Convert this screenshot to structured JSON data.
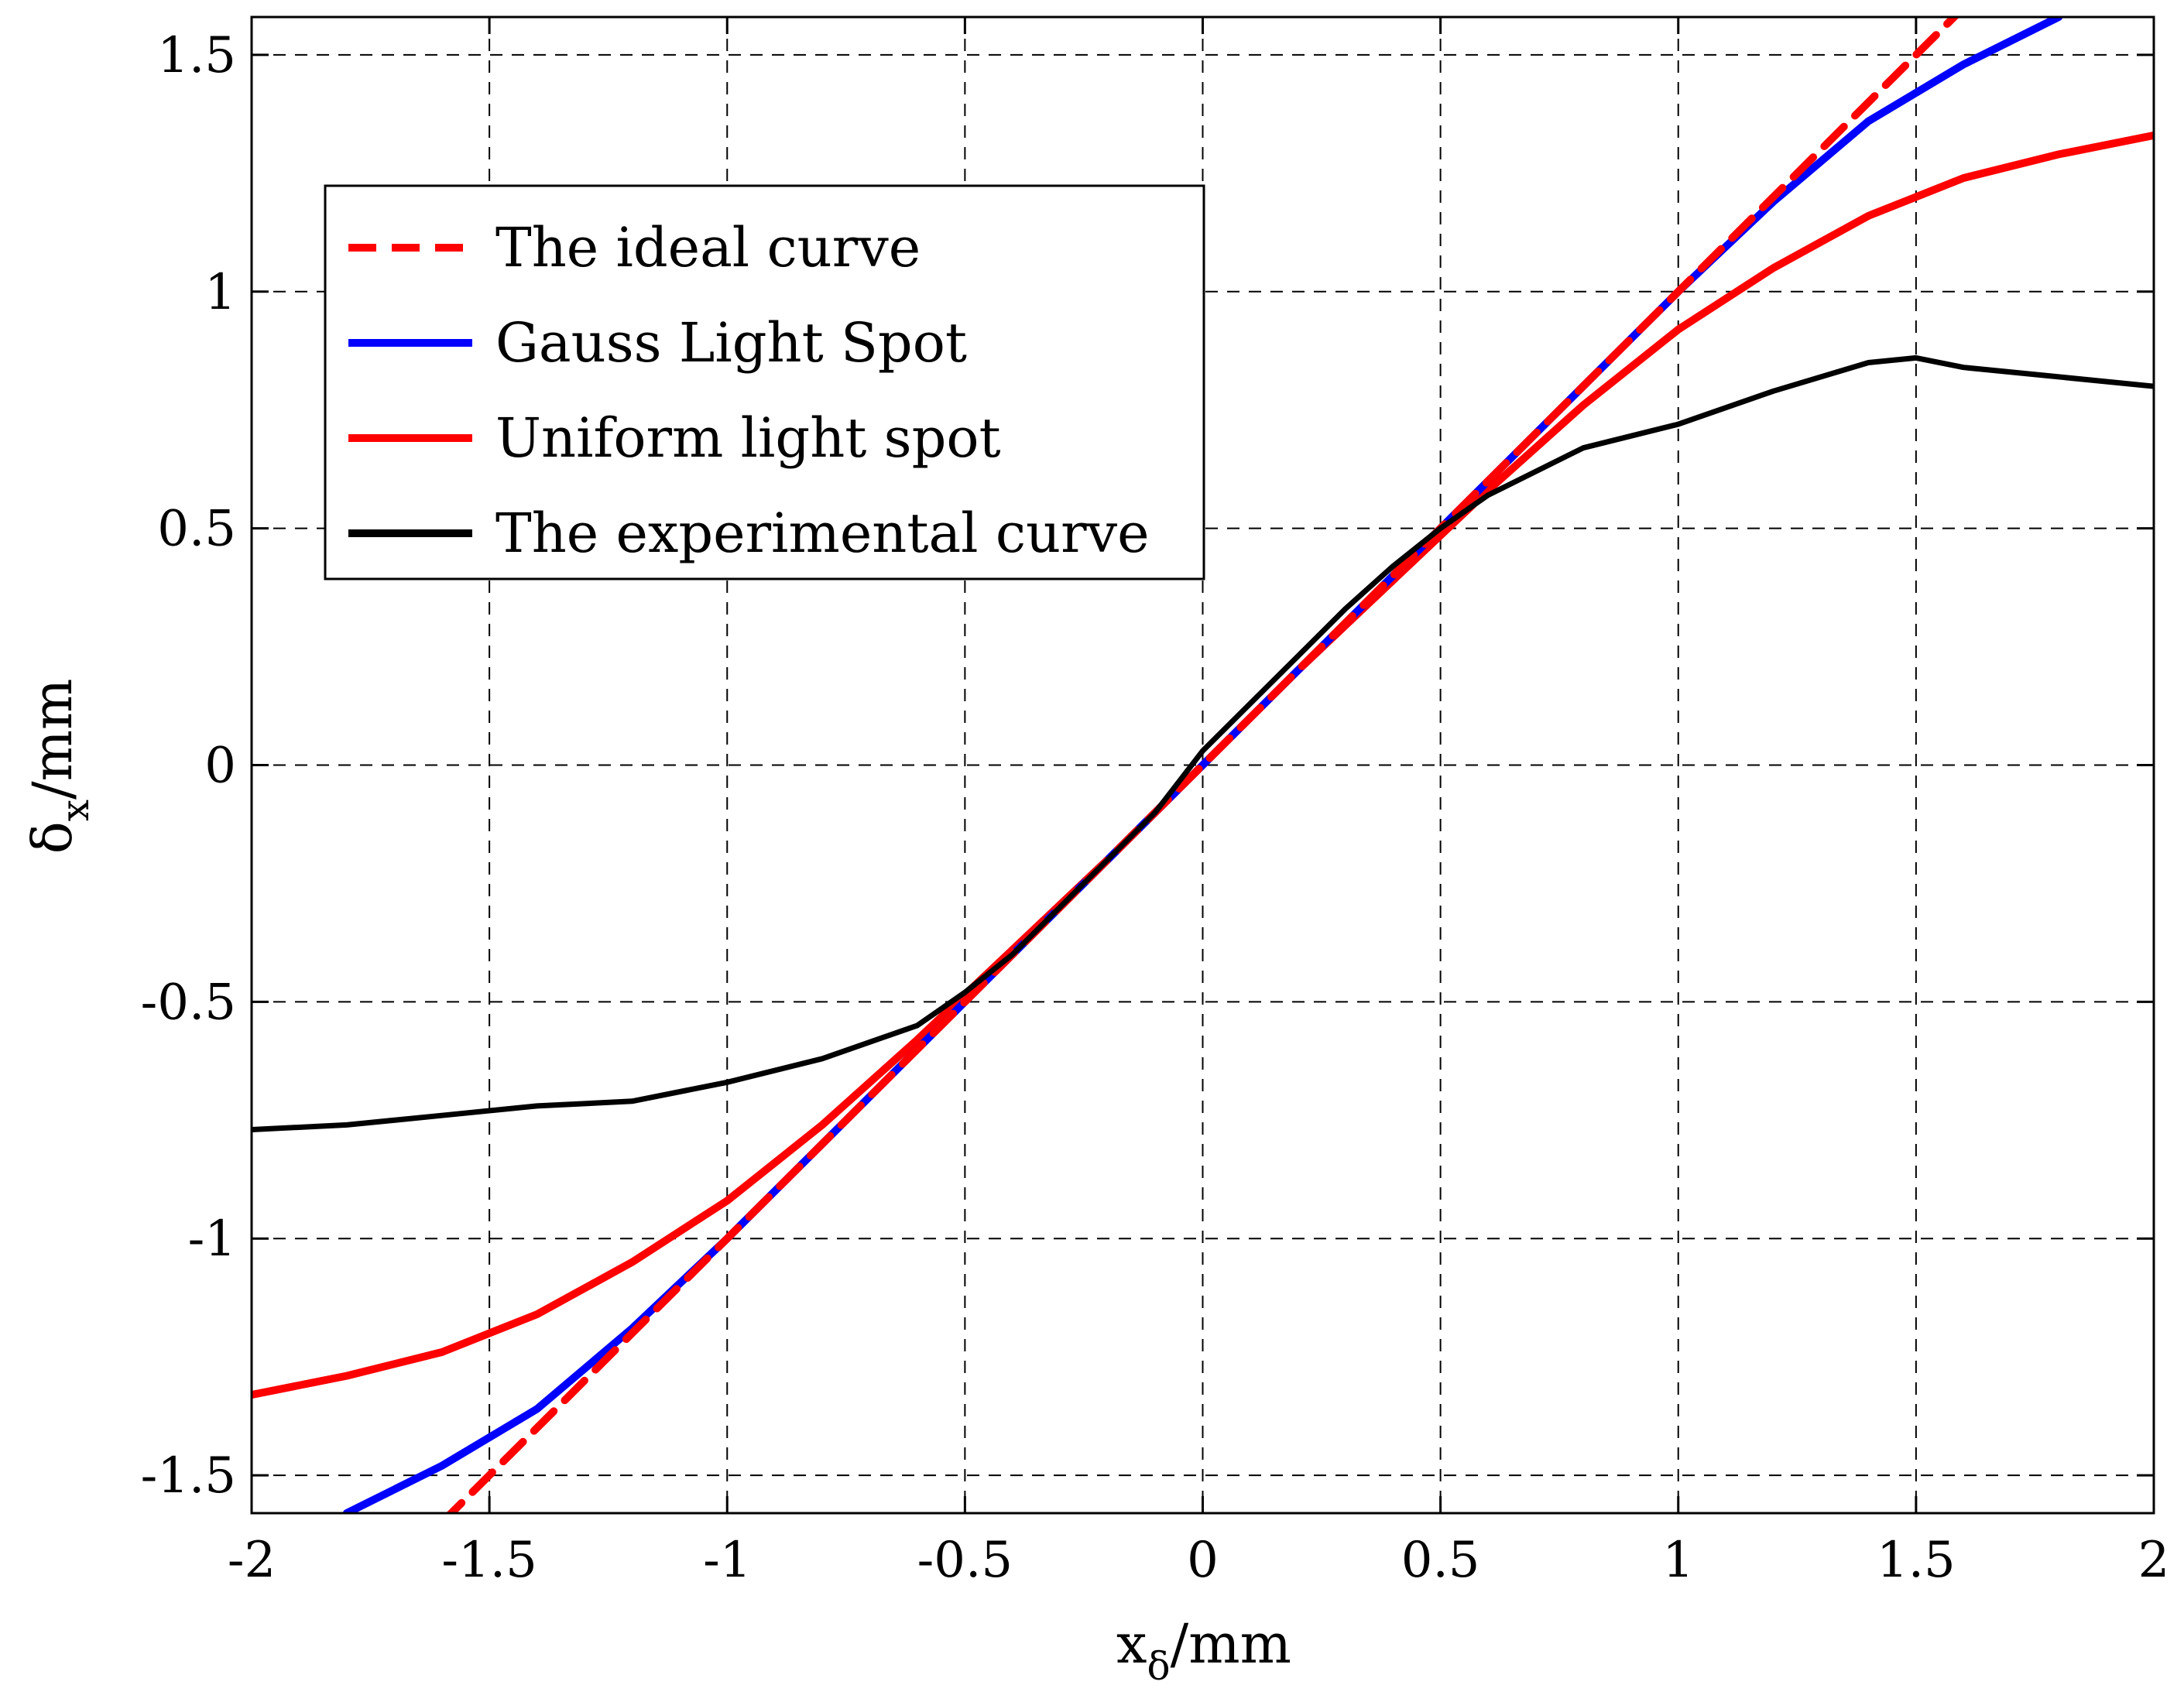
{
  "chart_data": {
    "type": "line",
    "title": "",
    "xlabel": {
      "base": "x",
      "sub": "δ",
      "unit": "/mm"
    },
    "ylabel": {
      "base": "δ",
      "sub": "x",
      "unit": "/mm"
    },
    "xlim": [
      -2,
      2
    ],
    "ylim": [
      -1.58,
      1.58
    ],
    "xticks": [
      -2,
      -1.5,
      -1,
      -0.5,
      0,
      0.5,
      1,
      1.5,
      2
    ],
    "xtick_labels": [
      "-2",
      "-1.5",
      "-1",
      "-0.5",
      "0",
      "0.5",
      "1",
      "1.5",
      "2"
    ],
    "yticks": [
      -1.5,
      -1,
      -0.5,
      0,
      0.5,
      1,
      1.5
    ],
    "ytick_labels": [
      "-1.5",
      "-1",
      "-0.5",
      "0",
      "0.5",
      "1",
      "1.5"
    ],
    "grid": true,
    "legend_position": "upper-left",
    "series": [
      {
        "name": "The ideal curve",
        "color": "#ff0000",
        "style": "dashed",
        "x": [
          -1.6,
          -1.2,
          -0.8,
          -0.4,
          0,
          0.4,
          0.8,
          1.2,
          1.6
        ],
        "y": [
          -1.6,
          -1.2,
          -0.8,
          -0.4,
          0,
          0.4,
          0.8,
          1.2,
          1.6
        ]
      },
      {
        "name": "Gauss Light Spot",
        "color": "#0000ff",
        "style": "solid",
        "x": [
          -1.8,
          -1.6,
          -1.4,
          -1.2,
          -1.0,
          -0.8,
          -0.6,
          -0.4,
          -0.2,
          0,
          0.2,
          0.4,
          0.6,
          0.8,
          1.0,
          1.2,
          1.4,
          1.6,
          1.8
        ],
        "y": [
          -1.58,
          -1.48,
          -1.36,
          -1.19,
          -1.0,
          -0.8,
          -0.6,
          -0.4,
          -0.2,
          0,
          0.2,
          0.4,
          0.6,
          0.8,
          1.0,
          1.19,
          1.36,
          1.48,
          1.58
        ]
      },
      {
        "name": "Uniform light spot",
        "color": "#ff0000",
        "style": "solid",
        "x": [
          -2.0,
          -1.8,
          -1.6,
          -1.4,
          -1.2,
          -1.0,
          -0.8,
          -0.6,
          -0.4,
          -0.2,
          0,
          0.2,
          0.4,
          0.6,
          0.8,
          1.0,
          1.2,
          1.4,
          1.6,
          1.8,
          2.0
        ],
        "y": [
          -1.33,
          -1.29,
          -1.24,
          -1.16,
          -1.05,
          -0.92,
          -0.76,
          -0.58,
          -0.39,
          -0.2,
          0,
          0.2,
          0.39,
          0.58,
          0.76,
          0.92,
          1.05,
          1.16,
          1.24,
          1.29,
          1.33
        ]
      },
      {
        "name": "The experimental curve",
        "color": "#000000",
        "style": "solid",
        "x": [
          -2.0,
          -1.8,
          -1.6,
          -1.4,
          -1.2,
          -1.0,
          -0.8,
          -0.6,
          -0.5,
          -0.4,
          -0.3,
          -0.2,
          -0.1,
          0,
          0.1,
          0.2,
          0.3,
          0.4,
          0.5,
          0.6,
          0.8,
          1.0,
          1.2,
          1.4,
          1.5,
          1.6,
          1.8,
          2.0
        ],
        "y": [
          -0.77,
          -0.76,
          -0.74,
          -0.72,
          -0.71,
          -0.67,
          -0.62,
          -0.55,
          -0.48,
          -0.4,
          -0.3,
          -0.2,
          -0.1,
          0.03,
          0.13,
          0.23,
          0.33,
          0.42,
          0.5,
          0.57,
          0.67,
          0.72,
          0.79,
          0.85,
          0.86,
          0.84,
          0.82,
          0.8
        ]
      }
    ]
  }
}
